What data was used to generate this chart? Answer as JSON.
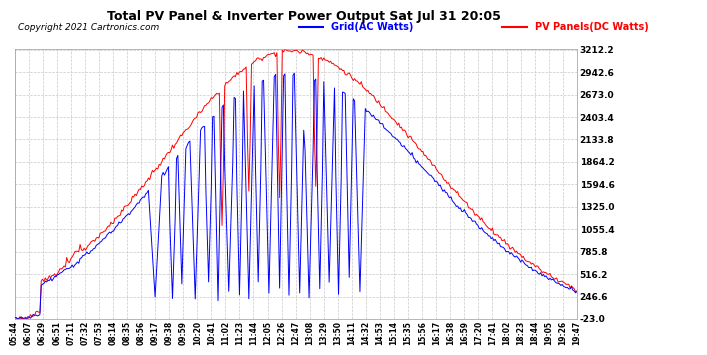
{
  "title": "Total PV Panel & Inverter Power Output Sat Jul 31 20:05",
  "copyright": "Copyright 2021 Cartronics.com",
  "legend_ac": "Grid(AC Watts)",
  "legend_dc": "PV Panels(DC Watts)",
  "color_ac": "#0000ff",
  "color_dc": "#ff0000",
  "bg_color": "#ffffff",
  "grid_color": "#bbbbbb",
  "yticks": [
    -23.0,
    246.6,
    516.2,
    785.8,
    1055.4,
    1325.0,
    1594.6,
    1864.2,
    2133.8,
    2403.4,
    2673.0,
    2942.6,
    3212.2
  ],
  "ymin": -23.0,
  "ymax": 3212.2,
  "xtick_labels": [
    "05:44",
    "06:07",
    "06:29",
    "06:51",
    "07:11",
    "07:32",
    "07:53",
    "08:14",
    "08:35",
    "08:56",
    "09:17",
    "09:38",
    "09:59",
    "10:20",
    "10:41",
    "11:02",
    "11:23",
    "11:44",
    "12:05",
    "12:26",
    "12:47",
    "13:08",
    "13:29",
    "13:50",
    "14:11",
    "14:32",
    "14:53",
    "15:14",
    "15:35",
    "15:56",
    "16:17",
    "16:38",
    "16:59",
    "17:20",
    "17:41",
    "18:02",
    "18:23",
    "18:44",
    "19:05",
    "19:26",
    "19:47"
  ]
}
